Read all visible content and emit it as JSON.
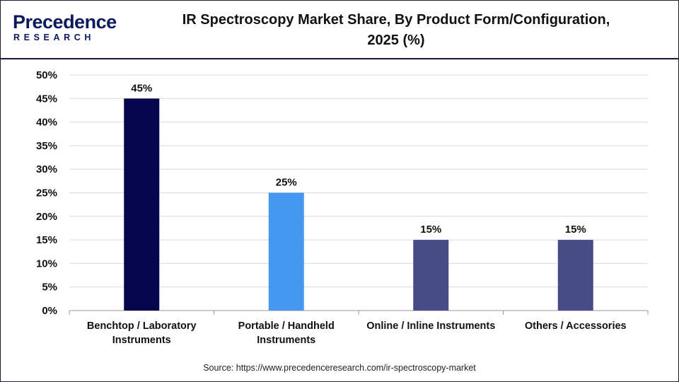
{
  "brand": {
    "name": "Precedence",
    "sub": "RESEARCH"
  },
  "title_line1": "IR Spectroscopy Market Share, By Product Form/Configuration,",
  "title_line2": "2025 (%)",
  "source": "Source: https://www.precedenceresearch.com/ir-spectroscopy-market",
  "chart_data": {
    "type": "bar",
    "categories": [
      [
        "Benchtop / Laboratory",
        "Instruments"
      ],
      [
        "Portable / Handheld",
        "Instruments"
      ],
      [
        "Online / Inline Instruments"
      ],
      [
        "Others / Accessories"
      ]
    ],
    "values": [
      45,
      25,
      15,
      15
    ],
    "value_labels": [
      "45%",
      "25%",
      "15%",
      "15%"
    ],
    "colors": [
      "#06064d",
      "#4597f0",
      "#474c87",
      "#474c87"
    ],
    "yticks": [
      "0%",
      "5%",
      "10%",
      "15%",
      "20%",
      "25%",
      "30%",
      "35%",
      "40%",
      "45%",
      "50%"
    ],
    "ylim": [
      0,
      50
    ],
    "grid": true
  }
}
